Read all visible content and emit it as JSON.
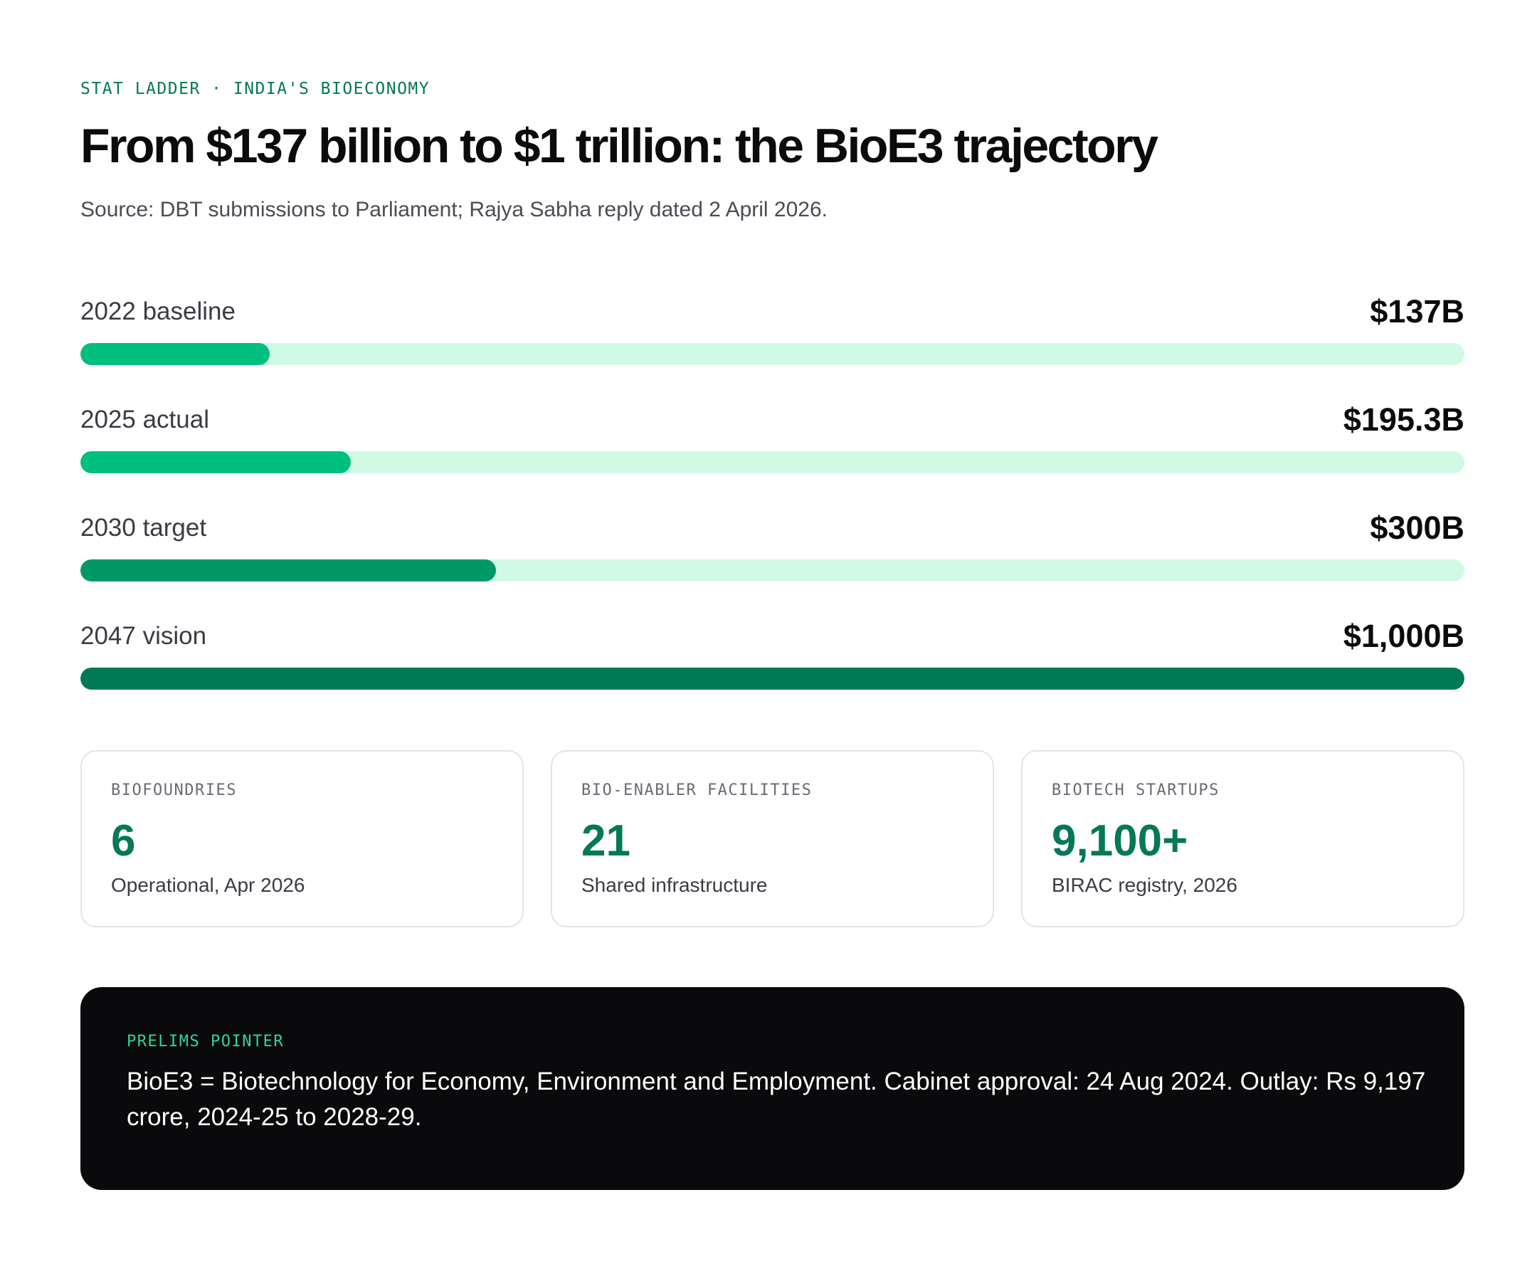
{
  "header": {
    "eyebrow": "STAT LADDER · INDIA'S BIOECONOMY",
    "title": "From $137 billion to $1 trillion: the BioE3 trajectory",
    "source": "Source: DBT submissions to Parliament; Rajya Sabha reply dated 2 April 2026."
  },
  "chart_data": {
    "type": "bar",
    "orientation": "horizontal",
    "categories": [
      "2022 baseline",
      "2025 actual",
      "2030 target",
      "2047 vision"
    ],
    "values": [
      137,
      195.3,
      300,
      1000
    ],
    "value_labels": [
      "$137B",
      "$195.3B",
      "$300B",
      "$1,000B"
    ],
    "unit": "USD billion",
    "xlim": [
      0,
      1000
    ],
    "colors": [
      "#00bf7f",
      "#00bf7f",
      "#009966",
      "#007a55"
    ],
    "track_color": "#d1fae5",
    "grid": false
  },
  "stats": [
    {
      "label": "BIOFOUNDRIES",
      "value": "6",
      "note": "Operational, Apr 2026"
    },
    {
      "label": "BIO-ENABLER FACILITIES",
      "value": "21",
      "note": "Shared infrastructure"
    },
    {
      "label": "BIOTECH STARTUPS",
      "value": "9,100+",
      "note": "BIRAC registry, 2026"
    }
  ],
  "pointer": {
    "label": "PRELIMS POINTER",
    "text": "BioE3 = Biotechnology for Economy, Environment and Employment. Cabinet approval: 24 Aug 2024. Outlay: Rs 9,197 crore, 2024-25 to 2028-29."
  },
  "colors": {
    "accent": "#047857",
    "note_bg": "#0a0a0c",
    "note_label": "#34d399"
  }
}
